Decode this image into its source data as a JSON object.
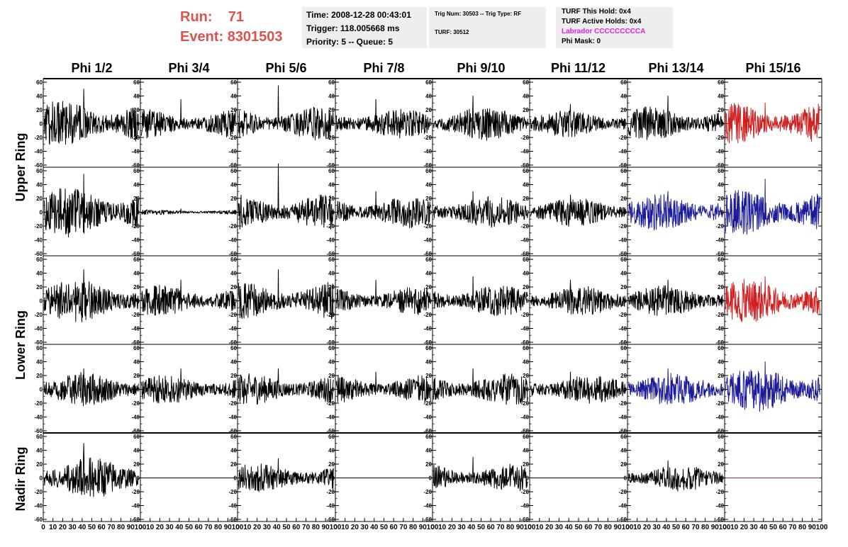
{
  "header": {
    "run_label": "Run:",
    "run_value": "71",
    "event_label": "Event:",
    "event_value": "8301503",
    "time": "Time: 2008-12-28 00:43:01",
    "trigger": "Trigger: 118.005668 ms",
    "priority": "Priority: 5 -- Queue: 5",
    "trig_num": "Trig Num: 30503 -- Trig Type: RF",
    "turf": "TURF: 30512",
    "turf_this_hold": "TURF This Hold: 0x4",
    "turf_active_holds": "TURF Active Holds: 0x4",
    "labrador": "Labrador CCCCCCCCCA",
    "phi_mask": "Phi Mask: 0"
  },
  "columns": [
    "Phi 1/2",
    "Phi 3/4",
    "Phi 5/6",
    "Phi 7/8",
    "Phi 9/10",
    "Phi 11/12",
    "Phi 13/14",
    "Phi 15/16"
  ],
  "rows": [
    "Upper Ring",
    "Lower Ring",
    "Nadir Ring"
  ],
  "chart_data": {
    "type": "line",
    "title": "",
    "xlim": [
      0,
      100
    ],
    "ylim": [
      -60,
      60
    ],
    "x_ticks": [
      0,
      10,
      20,
      30,
      40,
      50,
      60,
      70,
      80,
      90,
      100
    ],
    "x_tick_labels": [
      "0",
      "10",
      "20",
      "30",
      "40",
      "50",
      "60",
      "70",
      "80",
      "90",
      "100"
    ],
    "y_ticks": [
      -60,
      -40,
      -20,
      0,
      20,
      40,
      60
    ],
    "y_tick_labels": [
      "-60",
      "-40",
      "-20",
      "0",
      "20",
      "40",
      "60"
    ],
    "grid": false,
    "colors": {
      "normal": "#000000",
      "red": "#d02020",
      "blue": "#1a1a9a"
    },
    "trace_x_range": [
      1,
      98
    ],
    "panels": [
      [
        {
          "color": "normal",
          "amplitude": 19,
          "peak": 50,
          "seed": 101
        },
        {
          "color": "normal",
          "amplitude": 12,
          "peak": 35,
          "seed": 102
        },
        {
          "color": "normal",
          "amplitude": 14,
          "peak": 55,
          "seed": 103
        },
        {
          "color": "normal",
          "amplitude": 12,
          "peak": 35,
          "seed": 104
        },
        {
          "color": "normal",
          "amplitude": 14,
          "peak": 40,
          "seed": 105
        },
        {
          "color": "normal",
          "amplitude": 11,
          "peak": 28,
          "seed": 106
        },
        {
          "color": "normal",
          "amplitude": 14,
          "peak": 40,
          "seed": 107
        },
        {
          "color": "red",
          "amplitude": 17,
          "peak": 30,
          "seed": 108
        }
      ],
      [
        {
          "color": "normal",
          "amplitude": 21,
          "peak": 55,
          "seed": 201
        },
        {
          "color": "normal",
          "amplitude": 2,
          "peak": 5,
          "seed": 202
        },
        {
          "color": "normal",
          "amplitude": 15,
          "peak": 70,
          "seed": 203
        },
        {
          "color": "normal",
          "amplitude": 13,
          "peak": 30,
          "seed": 204
        },
        {
          "color": "normal",
          "amplitude": 13,
          "peak": 30,
          "seed": 205
        },
        {
          "color": "normal",
          "amplitude": 12,
          "peak": 25,
          "seed": 206
        },
        {
          "color": "blue",
          "amplitude": 15,
          "peak": 30,
          "seed": 207
        },
        {
          "color": "blue",
          "amplitude": 19,
          "peak": 48,
          "seed": 208
        }
      ],
      [
        {
          "color": "normal",
          "amplitude": 18,
          "peak": 45,
          "seed": 301
        },
        {
          "color": "normal",
          "amplitude": 13,
          "peak": 30,
          "seed": 302
        },
        {
          "color": "normal",
          "amplitude": 16,
          "peak": 45,
          "seed": 303
        },
        {
          "color": "normal",
          "amplitude": 12,
          "peak": 30,
          "seed": 304
        },
        {
          "color": "normal",
          "amplitude": 13,
          "peak": 35,
          "seed": 305
        },
        {
          "color": "normal",
          "amplitude": 12,
          "peak": 30,
          "seed": 306
        },
        {
          "color": "normal",
          "amplitude": 13,
          "peak": 30,
          "seed": 307
        },
        {
          "color": "red",
          "amplitude": 18,
          "peak": 35,
          "seed": 308
        }
      ],
      [
        {
          "color": "normal",
          "amplitude": 14,
          "peak": 30,
          "seed": 401
        },
        {
          "color": "normal",
          "amplitude": 12,
          "peak": 30,
          "seed": 402
        },
        {
          "color": "normal",
          "amplitude": 13,
          "peak": 30,
          "seed": 403
        },
        {
          "color": "normal",
          "amplitude": 12,
          "peak": 25,
          "seed": 404
        },
        {
          "color": "normal",
          "amplitude": 13,
          "peak": 30,
          "seed": 405
        },
        {
          "color": "normal",
          "amplitude": 12,
          "peak": 25,
          "seed": 406
        },
        {
          "color": "blue",
          "amplitude": 14,
          "peak": 30,
          "seed": 407
        },
        {
          "color": "blue",
          "amplitude": 19,
          "peak": 40,
          "seed": 408
        }
      ],
      [
        {
          "color": "normal",
          "amplitude": 17,
          "peak": 50,
          "seed": 501
        },
        {
          "color": "normal",
          "amplitude": 0,
          "peak": 0,
          "seed": 502
        },
        {
          "color": "normal",
          "amplitude": 12,
          "peak": 28,
          "seed": 503
        },
        {
          "color": "normal",
          "amplitude": 0,
          "peak": 0,
          "seed": 504
        },
        {
          "color": "normal",
          "amplitude": 12,
          "peak": 30,
          "seed": 505
        },
        {
          "color": "normal",
          "amplitude": 0,
          "peak": 0,
          "seed": 506
        },
        {
          "color": "normal",
          "amplitude": 11,
          "peak": 25,
          "seed": 507
        },
        {
          "color": "red",
          "amplitude": 0,
          "peak": 0,
          "seed": 508
        }
      ]
    ]
  }
}
